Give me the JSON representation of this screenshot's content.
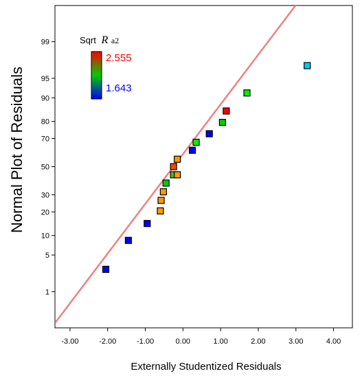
{
  "chart_data": {
    "type": "scatter",
    "title": "",
    "xlabel": "Externally Studentized Residuals",
    "ylabel": "Normal Plot of Residuals",
    "xlim": [
      -3.4,
      4.5
    ],
    "x_ticks": [
      -3,
      -2,
      -1,
      0,
      1,
      2,
      3,
      4
    ],
    "x_tick_labels": [
      "-3.00",
      "-2.00",
      "-1.00",
      "0.00",
      "1.00",
      "2.00",
      "3.00",
      "4.00"
    ],
    "y_scale": "normal-probability",
    "y_ticks": [
      1,
      5,
      10,
      20,
      30,
      50,
      70,
      80,
      90,
      95,
      99
    ],
    "y_tick_labels": [
      "1",
      "5",
      "10",
      "20",
      "30",
      "50",
      "70",
      "80",
      "90",
      "95",
      "99"
    ],
    "grid": false,
    "legend": {
      "title_prefix": "Sqrt",
      "title_symbol": "R",
      "title_suffix": "a2",
      "max_label": "2.555",
      "min_label": "1.643",
      "max_color": "#ff0000",
      "min_color": "#0000ff",
      "min": 1.643,
      "max": 2.555,
      "placement": "top-left"
    },
    "reference_line": {
      "color": "#f08080",
      "points": [
        [
          -3.4,
          0.18
        ],
        [
          3.2,
          99.93
        ]
      ]
    },
    "points": [
      {
        "x": -2.05,
        "y": 2.8,
        "color": "#0000ff"
      },
      {
        "x": -1.45,
        "y": 8.5,
        "color": "#0000ff"
      },
      {
        "x": -0.95,
        "y": 14.5,
        "color": "#0000ff"
      },
      {
        "x": -0.6,
        "y": 20.5,
        "color": "#ff9900"
      },
      {
        "x": -0.58,
        "y": 26.5,
        "color": "#ff9900"
      },
      {
        "x": -0.52,
        "y": 32.0,
        "color": "#ff9900"
      },
      {
        "x": -0.45,
        "y": 38.0,
        "color": "#00cc00"
      },
      {
        "x": -0.25,
        "y": 44.0,
        "color": "#33cc00"
      },
      {
        "x": -0.15,
        "y": 44.0,
        "color": "#ff9900"
      },
      {
        "x": -0.25,
        "y": 50.0,
        "color": "#ff4400"
      },
      {
        "x": -0.15,
        "y": 55.5,
        "color": "#ff9900"
      },
      {
        "x": 0.25,
        "y": 62.0,
        "color": "#0000ff"
      },
      {
        "x": 0.35,
        "y": 67.5,
        "color": "#00ee00"
      },
      {
        "x": 0.7,
        "y": 73.0,
        "color": "#0000ff"
      },
      {
        "x": 1.05,
        "y": 79.5,
        "color": "#00cc00"
      },
      {
        "x": 1.15,
        "y": 85.0,
        "color": "#ff0000"
      },
      {
        "x": 1.7,
        "y": 91.5,
        "color": "#00ee00"
      },
      {
        "x": 3.3,
        "y": 97.0,
        "color": "#00ccff"
      }
    ]
  }
}
